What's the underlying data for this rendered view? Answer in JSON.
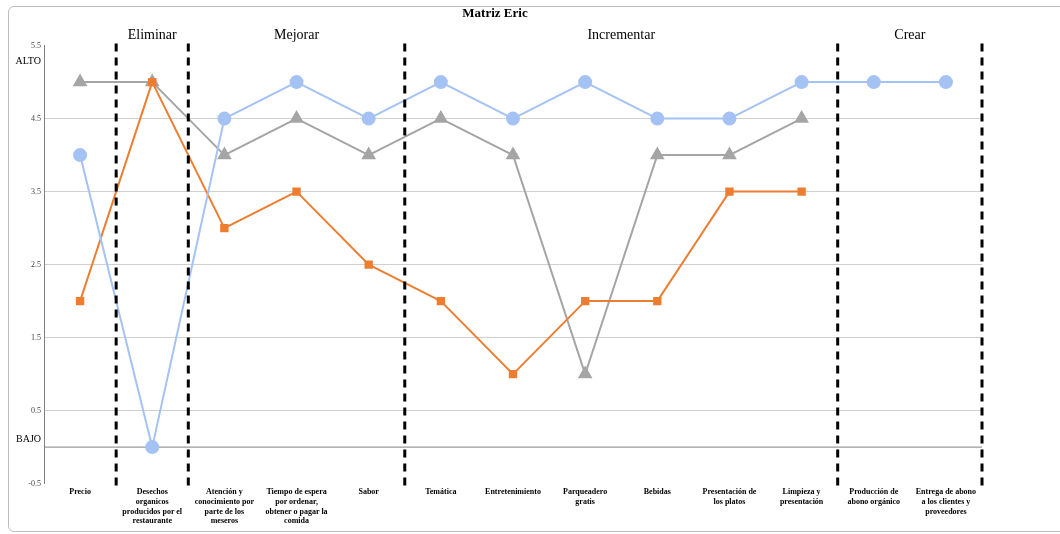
{
  "chart_data": {
    "type": "line",
    "title": "Matriz Eric",
    "categories": [
      "Precio",
      "Desechos organicos producidos por el restaurante",
      "Atención y conocimiento por parte de los meseros",
      "Tiempo de espera por ordenar, obtener o pagar la comida",
      "Sabor",
      "Temática",
      "Entretenimiento",
      "Parqueadero gratis",
      "Bebidas",
      "Presentación de los platos",
      "Limpieza y presentación",
      "Producción de abono orgánico",
      "Entrega de abono a los clientes y proveedores"
    ],
    "series": [
      {
        "color": "#a4c2f4",
        "marker": "circle",
        "values": [
          4,
          0,
          4.5,
          5,
          4.5,
          5,
          4.5,
          5,
          4.5,
          4.5,
          5,
          5,
          5
        ]
      },
      {
        "color": "#ed7d31",
        "marker": "square",
        "values": [
          2,
          5,
          3,
          3.5,
          2.5,
          2,
          1,
          2,
          2,
          3.5,
          3.5,
          null,
          null
        ]
      },
      {
        "color": "#a5a5a5",
        "marker": "triangle",
        "values": [
          5,
          5,
          4,
          4.5,
          4,
          4.5,
          4,
          1,
          4,
          4,
          4.5,
          null,
          null
        ]
      }
    ],
    "ylim": [
      -0.5,
      5.5
    ],
    "yticks": [
      -0.5,
      0.5,
      1.5,
      2.5,
      3.5,
      4.5,
      5.5
    ],
    "grid": "y",
    "legend": false,
    "ref_lines": [
      {
        "axis": "y",
        "value": 0,
        "color": "#808080"
      }
    ],
    "annotations": [
      "Eliminar",
      "Mejorar",
      "Incrementar",
      "Crear",
      "ALTO",
      "BAJO"
    ]
  }
}
